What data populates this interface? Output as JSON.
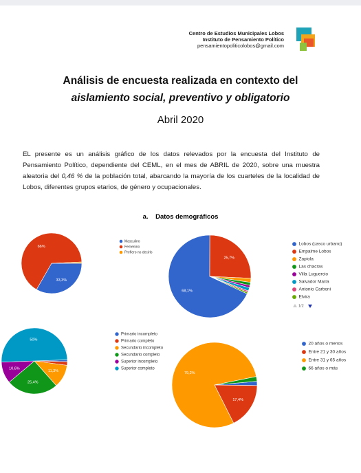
{
  "header": {
    "org_lines": [
      "Centro de Estudios Municipales Lobos",
      "Instituto de Pensamiento Político",
      "pensamientopoliticolobos@gmail.com"
    ],
    "title_line1": "Análisis de encuesta realizada en contexto del",
    "title_line2": "aislamiento social, preventivo y obligatorio",
    "date": "Abril 2020"
  },
  "intro": {
    "before": "EL presente es un análisis gráfico de los datos relevados por la encuesta del Instituto de Pensamiento Político, dependiente del CEML, en el mes de ABRIL de 2020, sobre una muestra aleatoria del ",
    "emphasis": "0,46 %",
    "after": " de la población total, abarcando la mayoría de los cuarteles de la localidad de Lobos, diferentes grupos etarios, de género y ocupacionales."
  },
  "section": {
    "number": "a.",
    "title": "Datos demográficos"
  },
  "chart_data": [
    {
      "type": "pie",
      "categories": [
        "Masculino",
        "Femenino",
        "Prefiero no decirlo"
      ],
      "values": [
        33.3,
        66,
        0.7
      ],
      "value_labels": [
        "33,3%",
        "66%",
        null
      ],
      "colors": [
        "#3366cc",
        "#dc3912",
        "#ff9900"
      ]
    },
    {
      "type": "pie",
      "categories": [
        "Lobos (casco urbano)",
        "Empalme Lobos",
        "Zapiola",
        "Las chacras",
        "Villa Luguercio",
        "Salvador María",
        "Antonio Carboni",
        "Elvira"
      ],
      "values": [
        68.1,
        25.7,
        1.6,
        1.2,
        0.9,
        1.3,
        0.6,
        0.6
      ],
      "value_labels": [
        "68,1%",
        "25,7%",
        null,
        null,
        null,
        null,
        null,
        null
      ],
      "colors": [
        "#3366cc",
        "#dc3912",
        "#ff9900",
        "#109618",
        "#990099",
        "#0099c6",
        "#dd4477",
        "#66aa00"
      ],
      "legend_page": "1/2"
    },
    {
      "type": "pie",
      "categories": [
        "Primario incompleto",
        "Primario completo",
        "Secundario incompleto",
        "Secundario completo",
        "Superior incompleto",
        "Superior completo"
      ],
      "values": [
        0.9,
        1.8,
        11.3,
        25.4,
        10.6,
        50
      ],
      "value_labels": [
        null,
        null,
        "11,3%",
        "25,4%",
        "10,6%",
        "50%"
      ],
      "colors": [
        "#3366cc",
        "#dc3912",
        "#ff9900",
        "#109618",
        "#990099",
        "#0099c6"
      ]
    },
    {
      "type": "pie",
      "categories": [
        "20 años o menos",
        "Entre 21 y 30 años",
        "Entre 31 y 65 años",
        "66 años o más"
      ],
      "values": [
        1.6,
        17.4,
        79.2,
        1.8
      ],
      "value_labels": [
        null,
        "17,4%",
        "79,2%",
        null
      ],
      "colors": [
        "#3366cc",
        "#dc3912",
        "#ff9900",
        "#109618"
      ]
    }
  ]
}
